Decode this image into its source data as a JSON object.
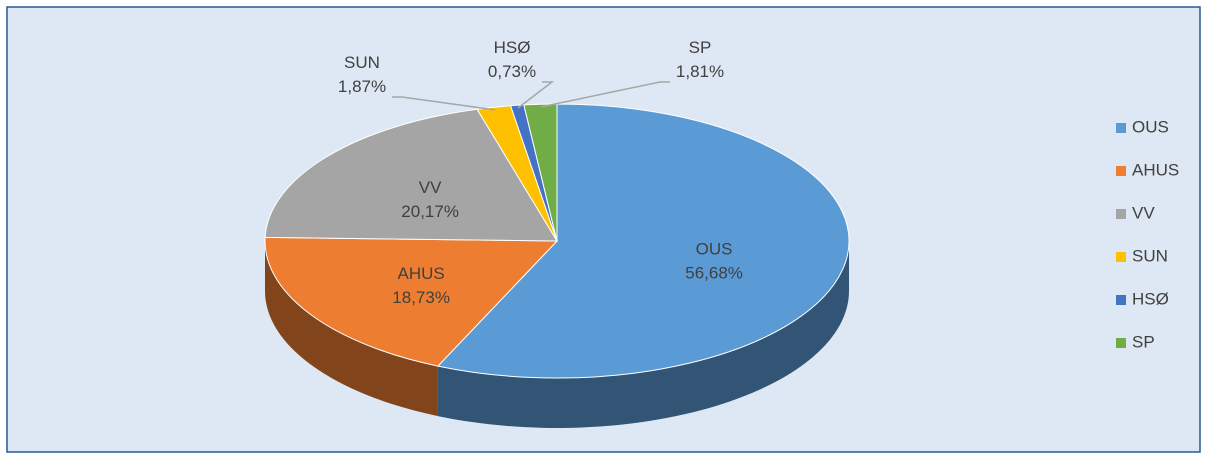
{
  "chart_data": {
    "type": "pie",
    "categories": [
      "OUS",
      "AHUS",
      "VV",
      "SUN",
      "HSØ",
      "SP"
    ],
    "values": [
      56.68,
      18.73,
      20.17,
      1.87,
      0.73,
      1.81
    ],
    "value_labels": [
      "56,68%",
      "18,73%",
      "20,17%",
      "1,87%",
      "0,73%",
      "1,81%"
    ],
    "colors": [
      "#5b9bd5",
      "#ed7d31",
      "#a5a5a5",
      "#ffc000",
      "#4472c4",
      "#70ad47"
    ],
    "legend": "right"
  }
}
